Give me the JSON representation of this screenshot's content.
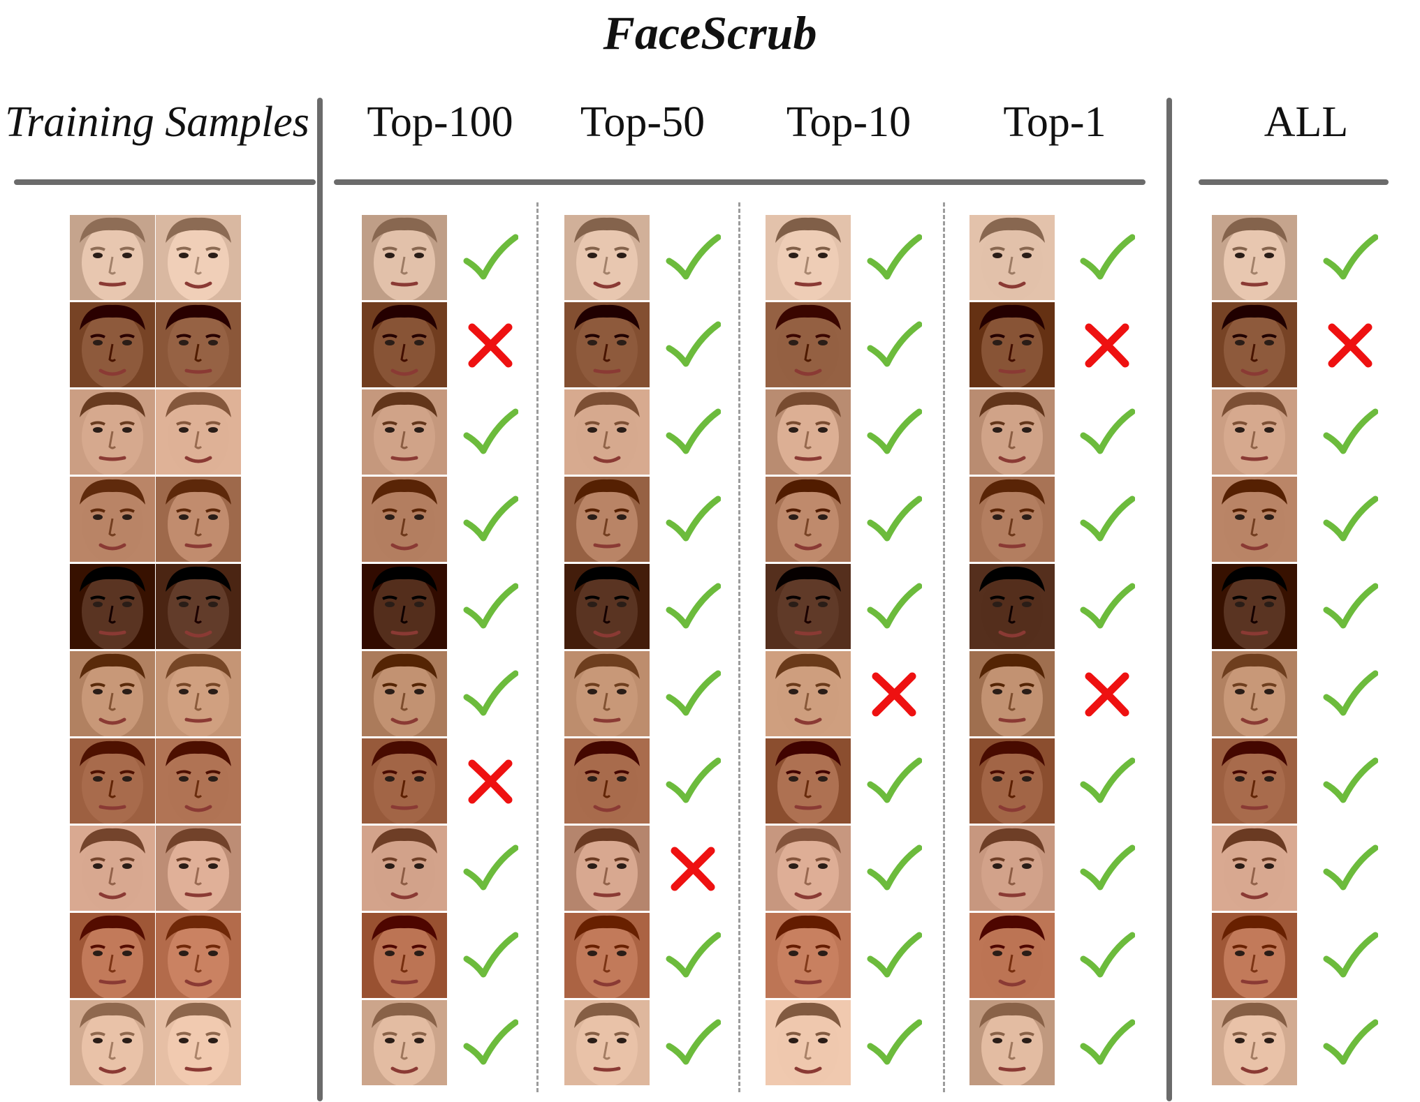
{
  "title": "FaceScrub",
  "columns": {
    "training": "Training Samples",
    "top100": "Top-100",
    "top50": "Top-50",
    "top10": "Top-10",
    "top1": "Top-1",
    "all": "ALL"
  },
  "results": {
    "top100": [
      true,
      false,
      true,
      true,
      true,
      true,
      false,
      true,
      true,
      true
    ],
    "top50": [
      true,
      true,
      true,
      true,
      true,
      true,
      true,
      false,
      true,
      true
    ],
    "top10": [
      true,
      true,
      true,
      true,
      true,
      false,
      true,
      true,
      true,
      true
    ],
    "top1": [
      true,
      false,
      true,
      true,
      true,
      false,
      true,
      true,
      true,
      true
    ],
    "all": [
      true,
      false,
      true,
      true,
      true,
      true,
      true,
      true,
      true,
      true
    ]
  },
  "colors": {
    "check": "#6cbb3c",
    "cross": "#ee1111",
    "rule": "#6b6b6b"
  },
  "face_tones": [
    "#e8c7b0",
    "#8e5a3c",
    "#d6a98e",
    "#b98466",
    "#5a3422",
    "#c89878",
    "#a86b4c",
    "#d8a890",
    "#c27a5a",
    "#e9c2a8"
  ]
}
